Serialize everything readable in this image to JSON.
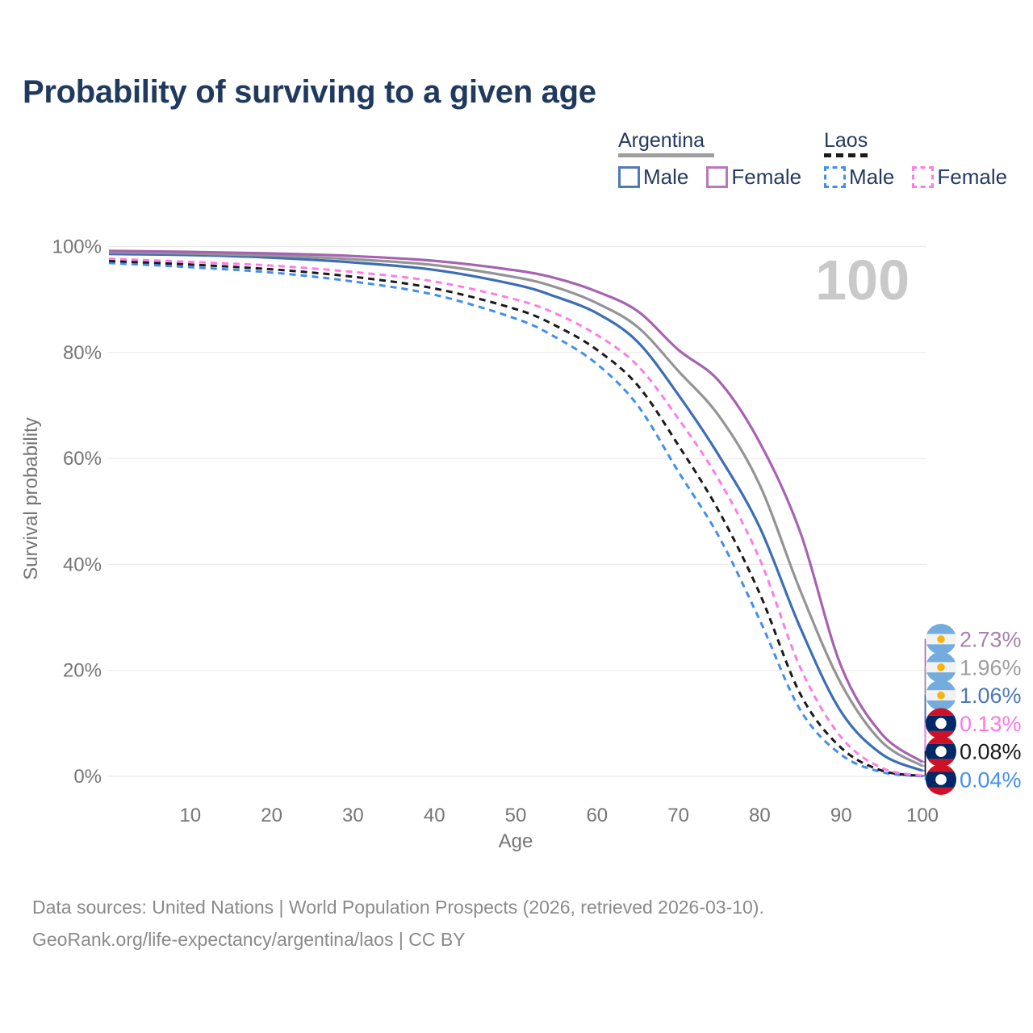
{
  "page": {
    "title": "Probability of surviving to a given age"
  },
  "legend": {
    "groups": [
      {
        "name": "Argentina",
        "line_style": "solid",
        "underline_color": "#9e9e9e",
        "items": [
          {
            "label": "Male",
            "color": "#4f7ab8"
          },
          {
            "label": "Female",
            "color": "#bc77bc"
          }
        ]
      },
      {
        "name": "Laos",
        "line_style": "dashed",
        "underline_color": "#1a1a1a",
        "items": [
          {
            "label": "Male",
            "color": "#418ef0"
          },
          {
            "label": "Female",
            "color": "#ff7ce8"
          }
        ]
      }
    ]
  },
  "chart_data": {
    "type": "line",
    "title": "Probability of surviving to a given age",
    "xlabel": "Age",
    "ylabel": "Survival probability",
    "x_ticks": [
      "10",
      "20",
      "30",
      "40",
      "50",
      "60",
      "70",
      "80",
      "90",
      "100"
    ],
    "y_ticks": [
      "0%",
      "20%",
      "40%",
      "60%",
      "80%",
      "100%"
    ],
    "xlim": [
      0,
      100
    ],
    "ylim": [
      0,
      100
    ],
    "grid": "horizontal",
    "legend_position": "top-right",
    "watermark": "100",
    "ages": [
      0,
      10,
      20,
      30,
      40,
      50,
      55,
      60,
      65,
      70,
      75,
      80,
      85,
      90,
      95,
      100
    ],
    "series": [
      {
        "name": "Argentina Female",
        "country": "Argentina",
        "sex": "Female",
        "color": "#a763af",
        "dashed": false,
        "flag": "argentina",
        "end_label": "2.73%",
        "end_label_color": "#a87fb0",
        "values": [
          99.2,
          99.0,
          98.7,
          98.2,
          97.3,
          95.5,
          94.0,
          91.5,
          87.8,
          80.5,
          74.6,
          63.0,
          46.0,
          20.8,
          8.0,
          2.73
        ]
      },
      {
        "name": "Argentina",
        "country": "Argentina",
        "sex": "Both",
        "color": "#949494",
        "dashed": false,
        "flag": "argentina",
        "end_label": "1.96%",
        "end_label_color": "#9e9e9e",
        "values": [
          98.9,
          98.7,
          98.3,
          97.6,
          96.5,
          94.2,
          92.3,
          89.3,
          84.8,
          76.5,
          68.0,
          55.0,
          35.0,
          17.5,
          6.5,
          1.96
        ]
      },
      {
        "name": "Argentina Male",
        "country": "Argentina",
        "sex": "Male",
        "color": "#3d6eb5",
        "dashed": false,
        "flag": "argentina",
        "end_label": "1.06%",
        "end_label_color": "#4a77bd",
        "values": [
          98.6,
          98.4,
          97.9,
          97.0,
          95.6,
          92.8,
          90.5,
          87.4,
          82.0,
          72.0,
          60.5,
          47.0,
          28.0,
          12.2,
          4.2,
          1.06
        ]
      },
      {
        "name": "Laos Female",
        "country": "Laos",
        "sex": "Female",
        "color": "#ff7ce8",
        "dashed": true,
        "flag": "laos",
        "end_label": "0.13%",
        "end_label_color": "#ff77e3",
        "values": [
          97.7,
          97.1,
          96.4,
          95.2,
          93.4,
          90.0,
          87.3,
          83.3,
          77.5,
          67.5,
          55.9,
          41.0,
          20.5,
          7.4,
          1.6,
          0.13
        ]
      },
      {
        "name": "Laos",
        "country": "Laos",
        "sex": "Both",
        "color": "#1a1a1a",
        "dashed": true,
        "flag": "laos",
        "end_label": "0.08%",
        "end_label_color": "#1a1a1a",
        "values": [
          97.3,
          96.6,
          95.7,
          94.3,
          92.1,
          88.2,
          85.0,
          80.5,
          73.8,
          62.5,
          50.0,
          34.5,
          15.5,
          5.4,
          1.1,
          0.08
        ]
      },
      {
        "name": "Laos Male",
        "country": "Laos",
        "sex": "Male",
        "color": "#418ef0",
        "dashed": true,
        "flag": "laos",
        "end_label": "0.04%",
        "end_label_color": "#4590f2",
        "values": [
          96.9,
          96.1,
          95.1,
          93.4,
          90.9,
          86.4,
          82.8,
          77.8,
          70.0,
          57.5,
          45.2,
          29.5,
          12.5,
          4.1,
          0.8,
          0.04
        ]
      }
    ]
  },
  "footer": {
    "line1": "Data sources: United Nations | World Population Prospects (2026, retrieved 2026-03-10).",
    "line2": "GeoRank.org/life-expectancy/argentina/laos | CC BY"
  }
}
